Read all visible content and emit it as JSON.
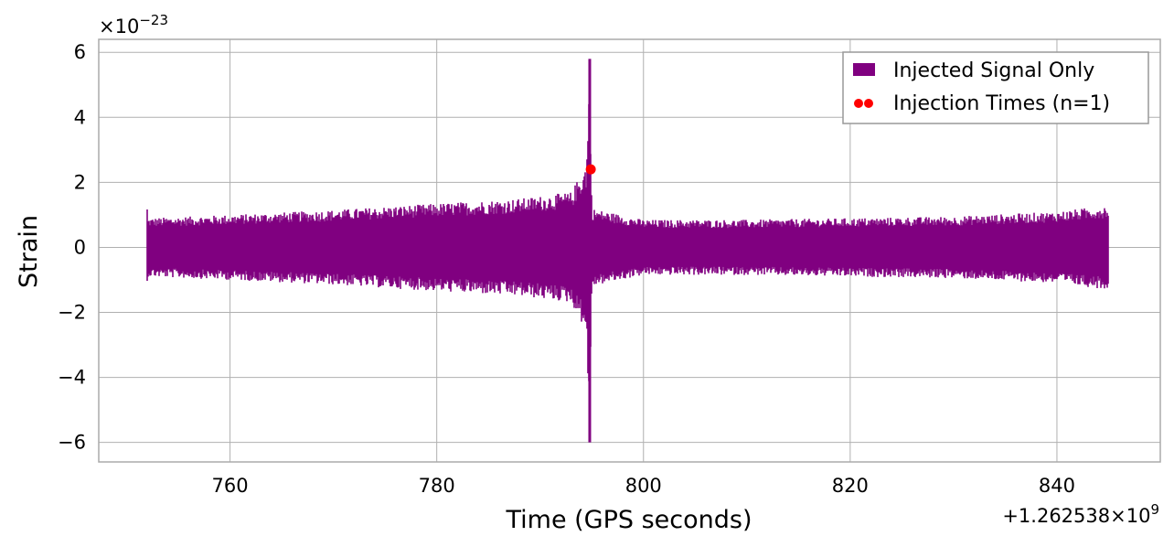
{
  "chart_data": {
    "type": "line",
    "title": "",
    "xlabel": "Time (GPS seconds)",
    "ylabel": "Strain",
    "x_offset_label": "+1.262538×10",
    "x_offset_exponent": "9",
    "y_scale_prefix": "×10",
    "y_scale_exponent": "−23",
    "xlim": [
      747.3,
      850.0
    ],
    "ylim": [
      -6.6,
      6.4
    ],
    "x_ticks": [
      760,
      780,
      800,
      820,
      840
    ],
    "x_tick_labels": [
      "760",
      "780",
      "800",
      "820",
      "840"
    ],
    "y_ticks": [
      -6,
      -4,
      -2,
      0,
      2,
      4,
      6
    ],
    "y_tick_labels": [
      "−6",
      "−4",
      "−2",
      "0",
      "2",
      "4",
      "6"
    ],
    "grid": true,
    "legend_position": "top-right",
    "series": [
      {
        "name": "Injected Signal Only",
        "color": "#800080",
        "kind": "strain-timeseries",
        "x_start": 752.0,
        "x_end": 845.0,
        "envelope": [
          {
            "x": 752,
            "amp": 0.9
          },
          {
            "x": 760,
            "amp": 1.0
          },
          {
            "x": 770,
            "amp": 1.15
          },
          {
            "x": 780,
            "amp": 1.35
          },
          {
            "x": 788,
            "amp": 1.5
          },
          {
            "x": 793,
            "amp": 1.7
          },
          {
            "x": 794.5,
            "amp": 2.6
          },
          {
            "x": 794.8,
            "amp": 5.9
          },
          {
            "x": 795.0,
            "amp": 1.2
          },
          {
            "x": 800,
            "amp": 0.85
          },
          {
            "x": 810,
            "amp": 0.85
          },
          {
            "x": 820,
            "amp": 0.9
          },
          {
            "x": 830,
            "amp": 0.95
          },
          {
            "x": 840,
            "amp": 1.1
          },
          {
            "x": 845,
            "amp": 1.3
          }
        ],
        "peak": {
          "x": 794.8,
          "max": 5.8,
          "min": -6.0
        }
      },
      {
        "name": "Injection Times (n=1)",
        "color": "#ff0000",
        "kind": "scatter",
        "points": [
          {
            "x": 794.9,
            "y": 2.4
          }
        ]
      }
    ]
  }
}
